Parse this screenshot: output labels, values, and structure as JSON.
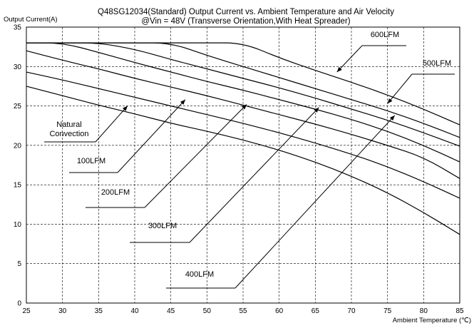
{
  "chart_data": {
    "type": "line",
    "title": "Q48SG12034(Standard)  Output Current vs. Ambient Temperature and Air Velocity",
    "subtitle": "@Vin = 48V (Transverse Orientation,With Heat Spreader)",
    "ylabel": "Output Current(A)",
    "xlabel": "Ambient Temperature (℃)",
    "xlim": [
      25,
      85
    ],
    "ylim": [
      0,
      35
    ],
    "xticks": [
      25,
      30,
      35,
      40,
      45,
      50,
      55,
      60,
      65,
      70,
      75,
      80,
      85
    ],
    "yticks": [
      0,
      5,
      10,
      15,
      20,
      25,
      30,
      35
    ],
    "grid": true,
    "legend": "none",
    "series": [
      {
        "name": "Natural Convection",
        "x": [
          25,
          30,
          35,
          40,
          45,
          50,
          55,
          60,
          65,
          70,
          75,
          80,
          85
        ],
        "y": [
          27.5,
          26.3,
          25.1,
          24.0,
          22.8,
          21.8,
          20.7,
          19.4,
          17.9,
          16.1,
          14.0,
          11.5,
          8.7
        ]
      },
      {
        "name": "100LFM",
        "x": [
          25,
          30,
          35,
          40,
          45,
          50,
          55,
          60,
          65,
          70,
          75,
          80,
          85
        ],
        "y": [
          29.3,
          28.3,
          27.2,
          26.1,
          25.0,
          23.9,
          22.8,
          21.6,
          20.3,
          18.9,
          17.3,
          15.4,
          13.3
        ]
      },
      {
        "name": "200LFM",
        "x": [
          25,
          30,
          35,
          40,
          45,
          50,
          55,
          60,
          65,
          70,
          75,
          80,
          85
        ],
        "y": [
          32.0,
          30.8,
          29.7,
          28.5,
          27.4,
          26.3,
          25.1,
          23.9,
          22.7,
          21.4,
          20.0,
          18.5,
          15.8
        ]
      },
      {
        "name": "300LFM",
        "x": [
          25,
          30,
          35,
          40,
          45,
          50,
          55,
          60,
          65,
          70,
          75,
          80,
          85
        ],
        "y": [
          33.0,
          33.0,
          31.8,
          30.5,
          29.3,
          28.1,
          27.0,
          25.8,
          24.6,
          23.3,
          21.8,
          20.0,
          17.9
        ]
      },
      {
        "name": "400LFM",
        "x": [
          25,
          30,
          35,
          40,
          45,
          50,
          55,
          60,
          65,
          70,
          75,
          80,
          85
        ],
        "y": [
          33.0,
          33.0,
          33.0,
          32.2,
          30.9,
          29.7,
          28.5,
          27.3,
          26.0,
          24.6,
          23.2,
          21.6,
          19.9
        ]
      },
      {
        "name": "500LFM",
        "x": [
          25,
          30,
          35,
          40,
          45,
          50,
          55,
          60,
          65,
          70,
          75,
          80,
          85
        ],
        "y": [
          33.0,
          33.0,
          33.0,
          33.0,
          33.0,
          31.4,
          30.0,
          28.6,
          27.2,
          25.8,
          24.4,
          22.8,
          21.0
        ]
      },
      {
        "name": "600LFM",
        "x": [
          25,
          30,
          35,
          40,
          45,
          50,
          55,
          60,
          65,
          70,
          75,
          80,
          85
        ],
        "y": [
          33.0,
          33.0,
          33.0,
          33.0,
          33.0,
          33.0,
          33.0,
          31.1,
          29.5,
          28.0,
          26.4,
          24.6,
          22.6
        ]
      }
    ],
    "annotations": [
      {
        "text": "600LFM",
        "target": [
          68.0,
          29.3
        ]
      },
      {
        "text": "500LFM",
        "target": [
          75.0,
          25.3
        ]
      },
      {
        "text": "Natural",
        "target": [
          39.0,
          25.0
        ]
      },
      {
        "text": "Convection",
        "target": [
          39.0,
          25.0
        ]
      },
      {
        "text": "100LFM",
        "target": [
          47.0,
          25.8
        ]
      },
      {
        "text": "200LFM",
        "target": [
          55.5,
          25.2
        ]
      },
      {
        "text": "300LFM",
        "target": [
          65.5,
          24.8
        ]
      },
      {
        "text": "400LFM",
        "target": [
          76.0,
          23.8
        ]
      }
    ]
  }
}
